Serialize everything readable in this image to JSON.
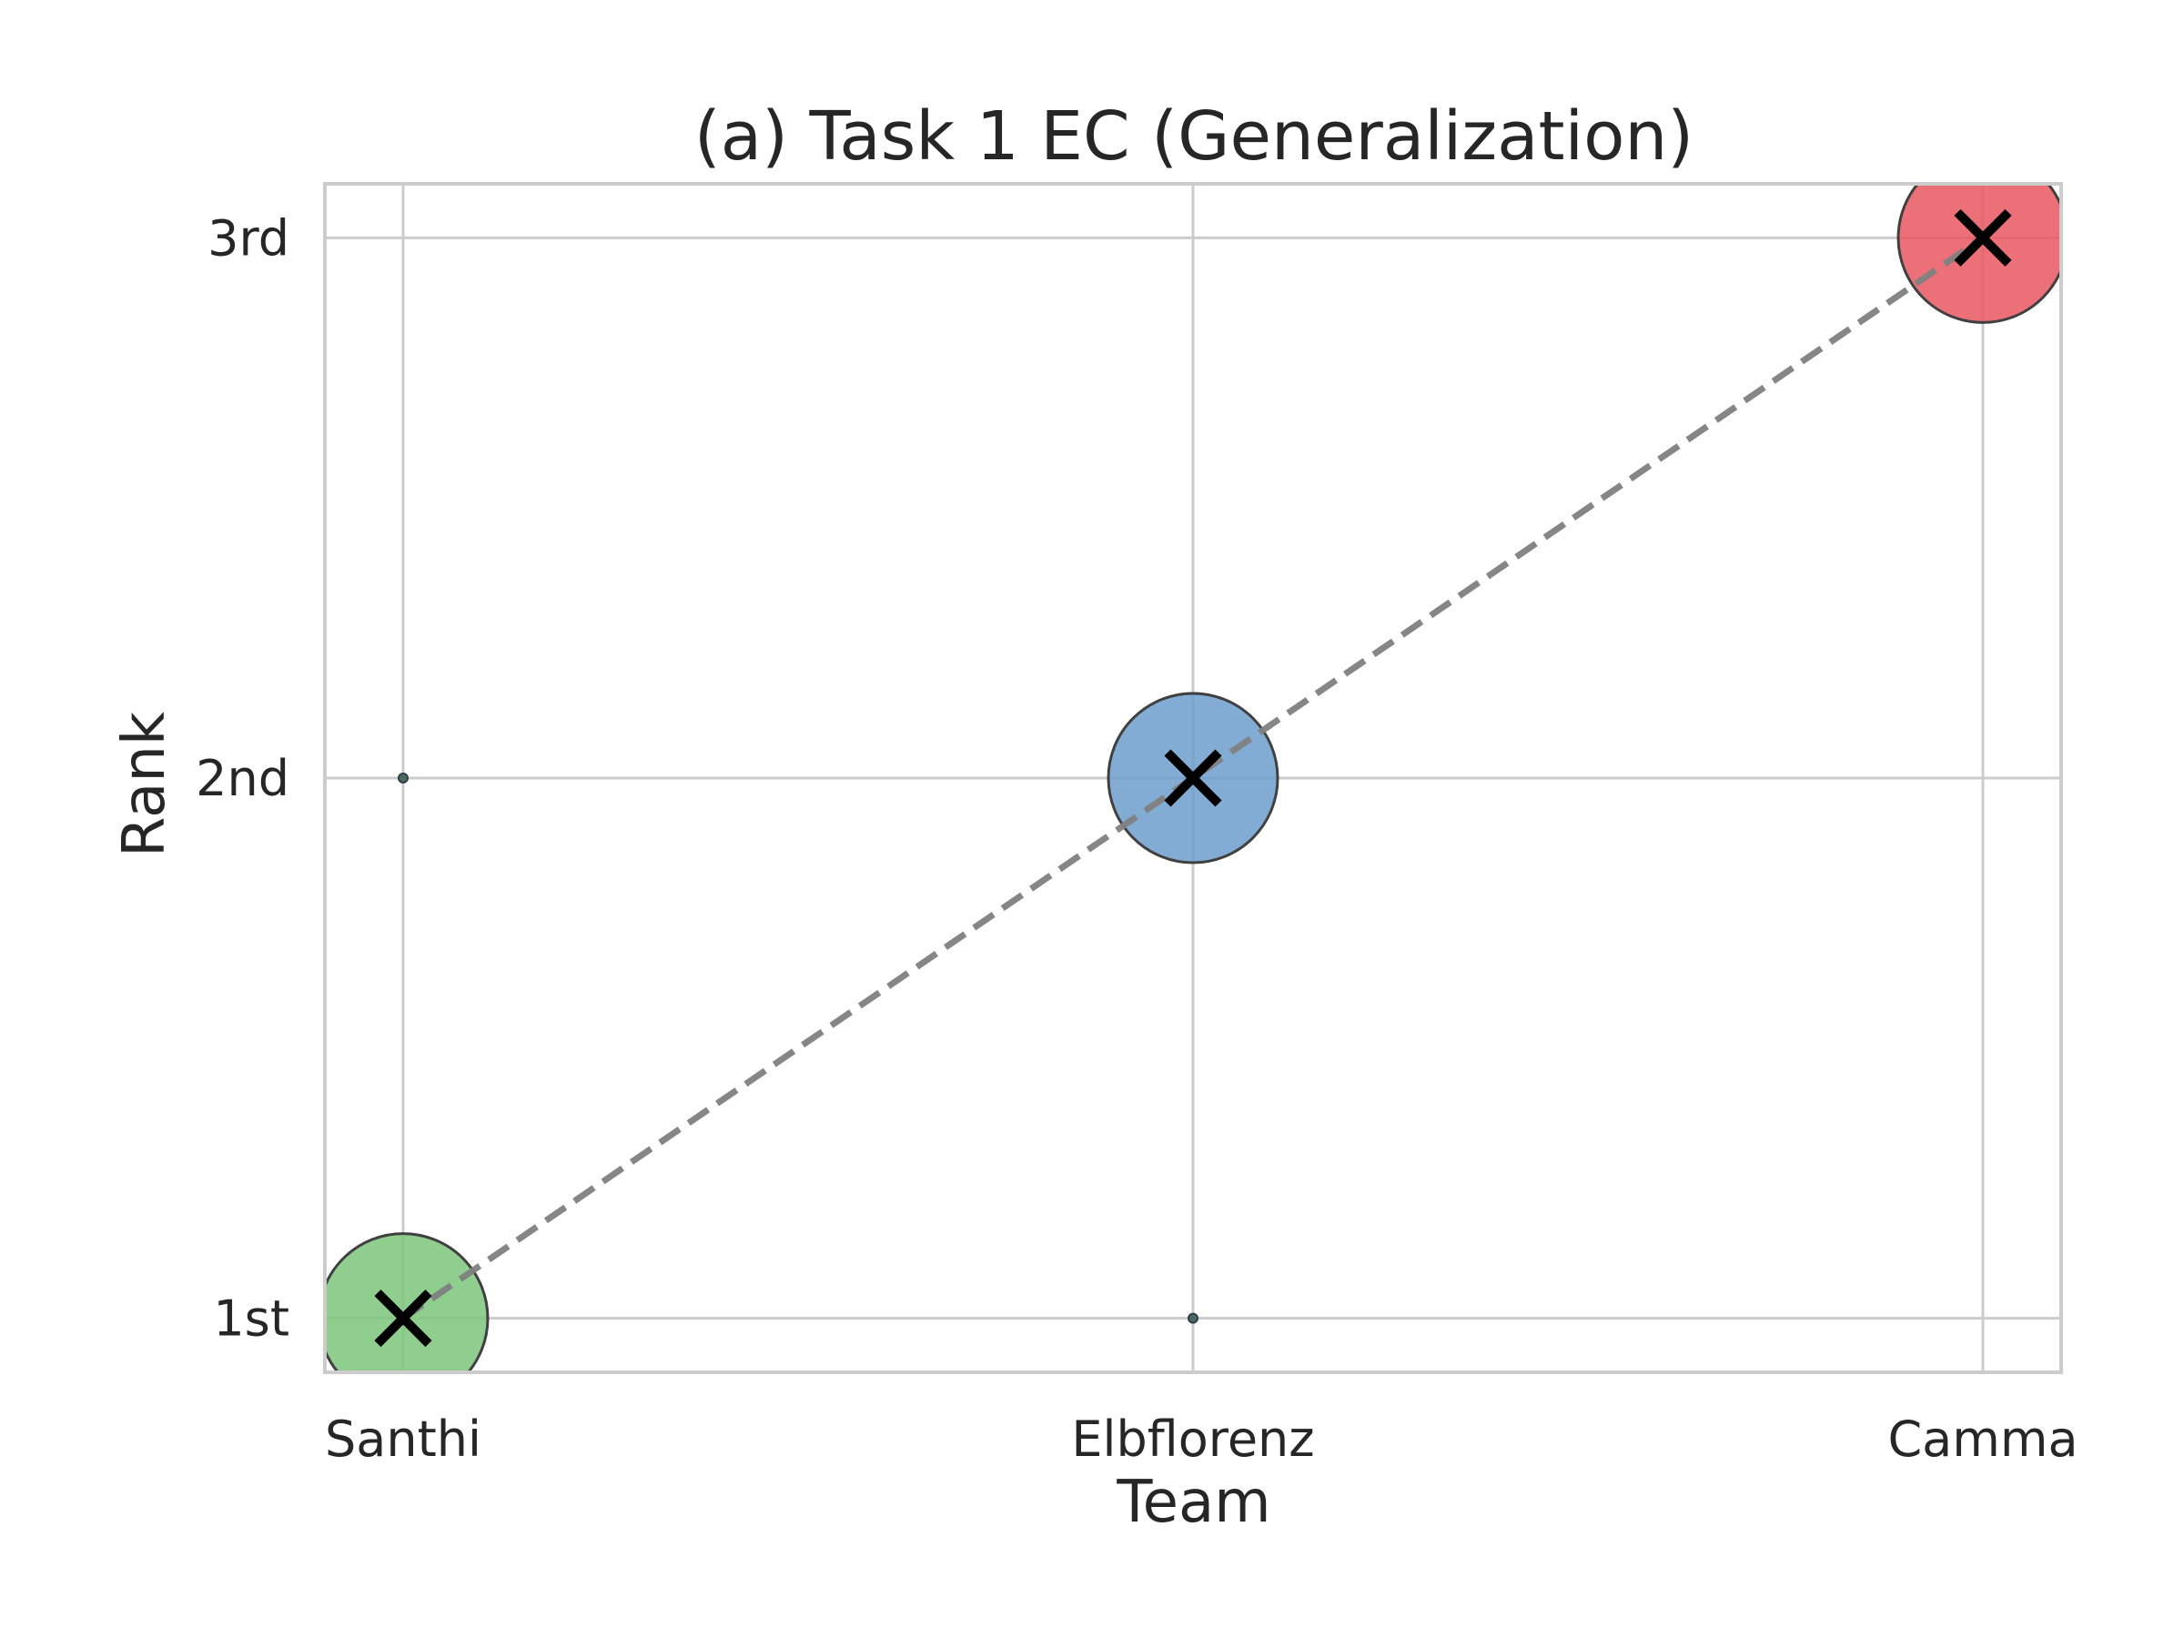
{
  "chart_data": {
    "type": "scatter",
    "title": "(a) Task 1 EC (Generalization)",
    "xlabel": "Team",
    "ylabel": "Rank",
    "categories": [
      "Santhi",
      "Elbflorenz",
      "Camma"
    ],
    "y_ticks": [
      {
        "value": 1,
        "label": "1st"
      },
      {
        "value": 2,
        "label": "2nd"
      },
      {
        "value": 3,
        "label": "3rd"
      }
    ],
    "ylim": [
      0.9,
      3.1
    ],
    "grid": true,
    "points": [
      {
        "category": "Santhi",
        "rank": 1,
        "color": "#7bc67a",
        "marker": "x"
      },
      {
        "category": "Elbflorenz",
        "rank": 2,
        "color": "#6c9dcb",
        "marker": "x"
      },
      {
        "category": "Camma",
        "rank": 3,
        "color": "#e8575f",
        "marker": "x"
      }
    ],
    "minor_points": [
      {
        "category": "Santhi",
        "rank": 2
      },
      {
        "category": "Elbflorenz",
        "rank": 1
      }
    ],
    "trend_line": {
      "style": "dashed",
      "color": "#808080"
    },
    "colors": {
      "grid": "#cccccc",
      "frame": "#cccccc",
      "marker": "#000000",
      "edge": "#404040"
    }
  }
}
